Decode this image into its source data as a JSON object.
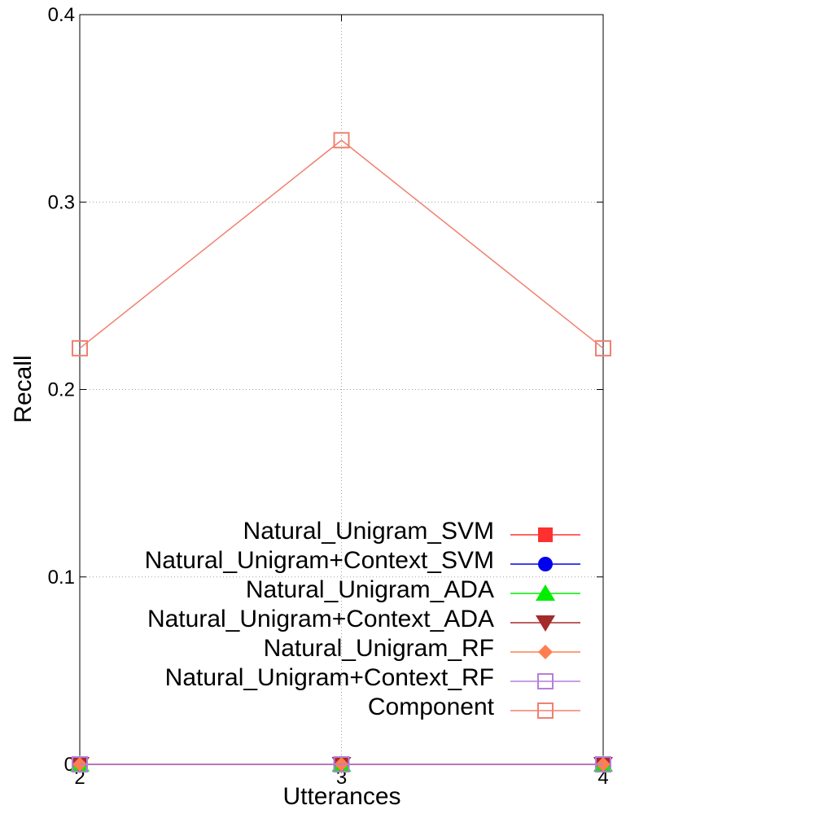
{
  "chart_data": {
    "type": "line",
    "xlabel": "Utterances",
    "ylabel": "Recall",
    "x": [
      2,
      3,
      4
    ],
    "xlim": [
      2,
      4
    ],
    "ylim": [
      0,
      0.4
    ],
    "x_ticks": [
      2,
      3,
      4
    ],
    "y_ticks": [
      0,
      0.1,
      0.2,
      0.3,
      0.4
    ],
    "y_tick_labels": [
      "0",
      "0.1",
      "0.2",
      "0.3",
      "0.4"
    ],
    "grid": true,
    "legend_position": "bottom-right",
    "series": [
      {
        "name": "Natural_Unigram_SVM",
        "values": [
          0,
          0,
          0
        ],
        "color": "#ff3030",
        "marker": "filled-square"
      },
      {
        "name": "Natural_Unigram+Context_SVM",
        "values": [
          0,
          0,
          0
        ],
        "color": "#0000ee",
        "marker": "filled-circle"
      },
      {
        "name": "Natural_Unigram_ADA",
        "values": [
          0,
          0,
          0
        ],
        "color": "#00ee00",
        "marker": "filled-triangle-up"
      },
      {
        "name": "Natural_Unigram+Context_ADA",
        "values": [
          0,
          0,
          0
        ],
        "color": "#a52a2a",
        "marker": "filled-triangle-down"
      },
      {
        "name": "Natural_Unigram_RF",
        "values": [
          0,
          0,
          0
        ],
        "color": "#ff7f50",
        "marker": "filled-diamond"
      },
      {
        "name": "Natural_Unigram+Context_RF",
        "values": [
          0,
          0,
          0
        ],
        "color": "#b57edc",
        "marker": "open-square"
      },
      {
        "name": "Component",
        "values": [
          0.222,
          0.333,
          0.222
        ],
        "color": "#f08070",
        "marker": "open-square"
      }
    ]
  }
}
